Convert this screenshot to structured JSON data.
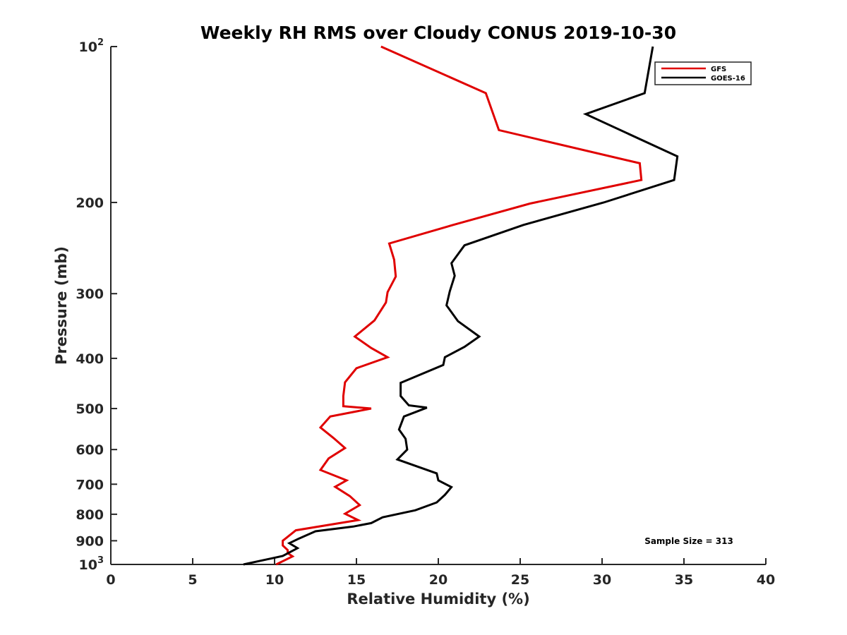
{
  "chart_data": {
    "type": "line",
    "title": "Weekly RH RMS over Cloudy CONUS 2019-10-30",
    "xlabel": "Relative Humidity (%)",
    "ylabel": "Pressure (mb)",
    "xlim": [
      0,
      40
    ],
    "ylim": [
      100,
      1000
    ],
    "y_scale": "log",
    "y_reversed": true,
    "grid": false,
    "legend_position": "top-right",
    "x_ticks": [
      "0",
      "5",
      "10",
      "15",
      "20",
      "25",
      "30",
      "35",
      "40"
    ],
    "y_ticks": [
      {
        "value": 100,
        "base": "10",
        "sup": "2"
      },
      {
        "value": 200,
        "base": "200",
        "sup": ""
      },
      {
        "value": 300,
        "base": "300",
        "sup": ""
      },
      {
        "value": 400,
        "base": "400",
        "sup": ""
      },
      {
        "value": 500,
        "base": "500",
        "sup": ""
      },
      {
        "value": 600,
        "base": "600",
        "sup": ""
      },
      {
        "value": 700,
        "base": "700",
        "sup": ""
      },
      {
        "value": 800,
        "base": "800",
        "sup": ""
      },
      {
        "value": 900,
        "base": "900",
        "sup": ""
      },
      {
        "value": 1000,
        "base": "10",
        "sup": "3"
      }
    ],
    "annotation": "Sample Size = 313",
    "series": [
      {
        "name": "GFS",
        "color": "#e00000",
        "x": [
          16.5,
          22.9,
          23.7,
          32.3,
          32.4,
          25.6,
          20.9,
          17.0,
          17.3,
          17.4,
          16.9,
          16.8,
          16.1,
          14.9,
          15.9,
          16.9,
          15.0,
          14.3,
          14.2,
          14.2,
          15.9,
          13.4,
          12.8,
          13.6,
          14.3,
          13.3,
          12.8,
          14.4,
          13.7,
          14.6,
          15.2,
          14.3,
          15.1,
          11.3,
          10.5,
          10.5,
          10.8,
          10.8,
          11.1,
          10.1
        ],
        "y": [
          100,
          123,
          145,
          168,
          181,
          201,
          221,
          240,
          258,
          278,
          298,
          312,
          338,
          363,
          382,
          398,
          418,
          445,
          473,
          495,
          500,
          518,
          544,
          570,
          596,
          624,
          657,
          688,
          708,
          738,
          768,
          798,
          821,
          859,
          900,
          919,
          938,
          951,
          965,
          1000
        ]
      },
      {
        "name": "GOES-16",
        "color": "#000000",
        "x": [
          33.1,
          32.6,
          29.0,
          34.6,
          34.4,
          30.1,
          25.2,
          21.6,
          20.8,
          21.0,
          20.7,
          20.5,
          21.2,
          22.5,
          21.6,
          20.4,
          20.3,
          17.7,
          17.7,
          18.2,
          19.3,
          17.9,
          17.6,
          18.0,
          18.1,
          17.5,
          19.9,
          20.0,
          20.8,
          20.4,
          19.9,
          18.6,
          16.6,
          15.9,
          14.8,
          12.5,
          11.5,
          10.9,
          11.4,
          10.5,
          8.1
        ],
        "y": [
          100,
          123,
          135,
          163,
          181,
          200,
          221,
          242,
          262,
          277,
          297,
          316,
          339,
          363,
          380,
          398,
          412,
          446,
          473,
          493,
          498,
          518,
          549,
          572,
          600,
          627,
          667,
          688,
          709,
          734,
          759,
          786,
          811,
          832,
          845,
          863,
          891,
          910,
          930,
          963,
          1000
        ]
      }
    ]
  }
}
